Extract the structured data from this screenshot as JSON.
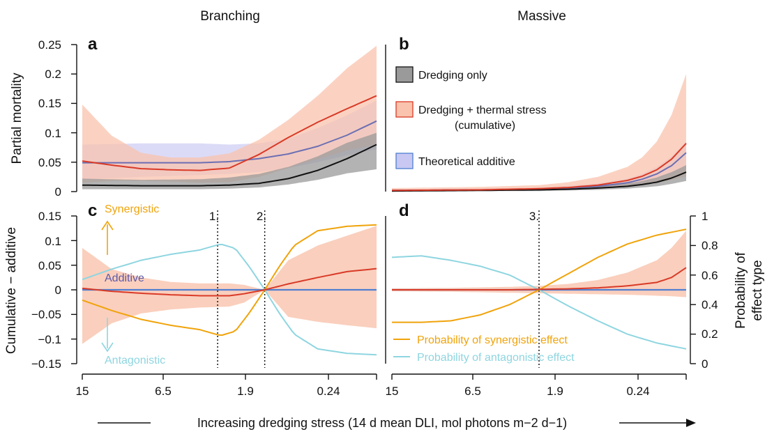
{
  "colors": {
    "black": "#111111",
    "red": "#d93a27",
    "red_band": "#f9c3ad",
    "purple_line": "#6b6fb3",
    "purple_band": "#c8c8f2",
    "grey_band": "#9a9a9a",
    "orange": "#f0a30a",
    "cyan": "#8ed5e0",
    "blue_line": "#4f7fd0",
    "purple_text": "#5c5aa8"
  },
  "columns": {
    "left": "Branching",
    "right": "Massive"
  },
  "panels": {
    "a": "a",
    "b": "b",
    "c": "c",
    "d": "d"
  },
  "xaxis": {
    "ticks": [
      "15",
      "6.5",
      "1.9",
      "0.24"
    ],
    "label": "Increasing dredging stress (14 d mean DLI, mol photons m−2 d−1)"
  },
  "top_axis": {
    "ylabel": "Partial mortality",
    "ticks": [
      "0.25",
      "0.2",
      "0.15",
      "0.1",
      "0.05",
      "0"
    ],
    "ylim": [
      0,
      0.25
    ]
  },
  "bottom_axis": {
    "ylabel": "Cumulative − additive",
    "ticks": [
      "0.15",
      "0.1",
      "0.05",
      "0",
      "−0.05",
      "−0.1",
      "−0.15"
    ],
    "ylim": [
      -0.15,
      0.15
    ],
    "right_ylabel_line1": "Probability of",
    "right_ylabel_line2": "effect type",
    "right_ticks": [
      "1",
      "0.8",
      "0.6",
      "0.4",
      "0.2",
      "0"
    ],
    "right_ylim": [
      0,
      1
    ]
  },
  "legend": {
    "dredging_only": "Dredging only",
    "cumulative_line1": "Dredging + thermal stress",
    "cumulative_line2": "(cumulative)",
    "additive": "Theoretical additive",
    "prob_syn": "Probability of synergistic effect",
    "prob_ant": "Probability of antagonistic effect"
  },
  "annotations": {
    "synergistic": "Synergistic",
    "additive": "Additive",
    "antagonistic": "Antagonistic",
    "v1": "1.",
    "v2": "2.",
    "v3": "3."
  },
  "chart_data": [
    {
      "panel": "a",
      "type": "line",
      "title": "Branching",
      "ylabel": "Partial mortality",
      "x_note": "x = position along dredging stress axis, 0 = 15 DLI (left), 1 = right end",
      "xlim": [
        0,
        1
      ],
      "ylim": [
        0,
        0.25
      ],
      "series": [
        {
          "name": "Dredging only",
          "x": [
            0,
            0.2,
            0.4,
            0.5,
            0.6,
            0.7,
            0.8,
            0.9,
            1
          ],
          "values": [
            0.011,
            0.01,
            0.01,
            0.011,
            0.014,
            0.022,
            0.036,
            0.056,
            0.08
          ],
          "lower": [
            0.004,
            0.004,
            0.004,
            0.005,
            0.007,
            0.012,
            0.02,
            0.031,
            0.038
          ],
          "upper": [
            0.022,
            0.02,
            0.021,
            0.024,
            0.03,
            0.042,
            0.06,
            0.083,
            0.1
          ]
        },
        {
          "name": "Dredging + thermal stress (cumulative)",
          "x": [
            0,
            0.1,
            0.2,
            0.3,
            0.4,
            0.5,
            0.6,
            0.7,
            0.8,
            0.9,
            1
          ],
          "values": [
            0.052,
            0.045,
            0.039,
            0.037,
            0.036,
            0.04,
            0.063,
            0.092,
            0.118,
            0.141,
            0.163
          ],
          "lower": [
            0.015,
            0.018,
            0.018,
            0.017,
            0.015,
            0.016,
            0.025,
            0.04,
            0.055,
            0.07,
            0.08
          ],
          "upper": [
            0.148,
            0.095,
            0.066,
            0.058,
            0.058,
            0.065,
            0.088,
            0.122,
            0.163,
            0.21,
            0.248
          ]
        },
        {
          "name": "Theoretical additive",
          "x": [
            0,
            0.2,
            0.4,
            0.5,
            0.6,
            0.7,
            0.8,
            0.9,
            1
          ],
          "values": [
            0.049,
            0.049,
            0.049,
            0.051,
            0.056,
            0.064,
            0.077,
            0.096,
            0.12
          ],
          "lower": [
            0.02,
            0.025,
            0.028,
            0.03,
            0.033,
            0.04,
            0.05,
            0.062,
            0.072
          ],
          "upper": [
            0.08,
            0.082,
            0.082,
            0.08,
            0.082,
            0.09,
            0.108,
            0.13,
            0.155
          ]
        }
      ]
    },
    {
      "panel": "b",
      "type": "line",
      "title": "Massive",
      "x_note": "x = position along dredging stress axis, 0 = 15 DLI (left), 1 = right end",
      "xlim": [
        0,
        1
      ],
      "ylim": [
        0,
        0.25
      ],
      "series": [
        {
          "name": "Dredging only",
          "x": [
            0,
            0.3,
            0.5,
            0.6,
            0.7,
            0.8,
            0.85,
            0.9,
            0.95,
            1
          ],
          "values": [
            0.001,
            0.002,
            0.003,
            0.004,
            0.006,
            0.009,
            0.012,
            0.016,
            0.023,
            0.033
          ],
          "lower": [
            0.0,
            0.001,
            0.001,
            0.002,
            0.003,
            0.005,
            0.007,
            0.009,
            0.013,
            0.018
          ],
          "upper": [
            0.002,
            0.003,
            0.005,
            0.007,
            0.01,
            0.014,
            0.018,
            0.024,
            0.033,
            0.045
          ]
        },
        {
          "name": "Dredging + thermal stress (cumulative)",
          "x": [
            0,
            0.3,
            0.5,
            0.6,
            0.7,
            0.8,
            0.85,
            0.9,
            0.95,
            1
          ],
          "values": [
            0.002,
            0.003,
            0.005,
            0.007,
            0.011,
            0.019,
            0.026,
            0.037,
            0.055,
            0.082
          ],
          "lower": [
            0.0,
            0.001,
            0.002,
            0.003,
            0.005,
            0.008,
            0.011,
            0.015,
            0.02,
            0.026
          ],
          "upper": [
            0.006,
            0.008,
            0.011,
            0.016,
            0.025,
            0.042,
            0.058,
            0.085,
            0.13,
            0.2
          ]
        },
        {
          "name": "Theoretical additive",
          "x": [
            0,
            0.3,
            0.5,
            0.6,
            0.7,
            0.8,
            0.85,
            0.9,
            0.95,
            1
          ],
          "values": [
            0.002,
            0.003,
            0.004,
            0.006,
            0.009,
            0.015,
            0.021,
            0.03,
            0.044,
            0.066
          ],
          "lower": [
            0.001,
            0.002,
            0.003,
            0.004,
            0.006,
            0.01,
            0.014,
            0.019,
            0.027,
            0.038
          ],
          "upper": [
            0.004,
            0.005,
            0.007,
            0.01,
            0.014,
            0.022,
            0.03,
            0.042,
            0.06,
            0.085
          ]
        }
      ]
    },
    {
      "panel": "c",
      "type": "line",
      "ylabel": "Cumulative − additive",
      "x_note": "x = position along dredging stress axis, 0 = 15 DLI (left), 1 = right end",
      "xlim": [
        0,
        1
      ],
      "ylim": [
        -0.15,
        0.15
      ],
      "y2lim": [
        0,
        1
      ],
      "vlines": [
        {
          "label": "1.",
          "x": 0.46
        },
        {
          "label": "2.",
          "x": 0.62
        }
      ],
      "series": [
        {
          "name": "Cumulative − additive",
          "axis": "left",
          "x": [
            0,
            0.1,
            0.2,
            0.3,
            0.4,
            0.5,
            0.55,
            0.62,
            0.7,
            0.8,
            0.9,
            1
          ],
          "values": [
            0.003,
            -0.003,
            -0.007,
            -0.01,
            -0.012,
            -0.012,
            -0.008,
            0.0,
            0.012,
            0.025,
            0.037,
            0.043
          ],
          "lower": [
            -0.11,
            -0.068,
            -0.048,
            -0.04,
            -0.036,
            -0.034,
            -0.026,
            0.0,
            -0.055,
            -0.065,
            -0.072,
            -0.078
          ],
          "upper": [
            0.085,
            0.042,
            0.025,
            0.016,
            0.013,
            0.013,
            0.01,
            0.0,
            0.06,
            0.09,
            0.11,
            0.13
          ]
        },
        {
          "name": "Probability of synergistic effect",
          "axis": "right",
          "x": [
            0,
            0.1,
            0.2,
            0.3,
            0.4,
            0.47,
            0.52,
            0.57,
            0.62,
            0.67,
            0.72,
            0.8,
            0.9,
            1
          ],
          "values": [
            0.43,
            0.36,
            0.3,
            0.26,
            0.23,
            0.19,
            0.22,
            0.35,
            0.5,
            0.66,
            0.8,
            0.9,
            0.93,
            0.94
          ]
        },
        {
          "name": "Probability of antagonistic effect",
          "axis": "right",
          "x": [
            0,
            0.1,
            0.2,
            0.3,
            0.4,
            0.47,
            0.52,
            0.57,
            0.62,
            0.67,
            0.72,
            0.8,
            0.9,
            1
          ],
          "values": [
            0.57,
            0.64,
            0.7,
            0.74,
            0.77,
            0.81,
            0.78,
            0.65,
            0.5,
            0.34,
            0.2,
            0.1,
            0.07,
            0.06
          ]
        },
        {
          "name": "Additive",
          "axis": "left",
          "x": [
            0,
            1
          ],
          "values": [
            0,
            0
          ]
        }
      ]
    },
    {
      "panel": "d",
      "type": "line",
      "x_note": "x = position along dredging stress axis, 0 = 15 DLI (left), 1 = right end",
      "xlim": [
        0,
        1
      ],
      "ylim": [
        -0.15,
        0.15
      ],
      "y2lim": [
        0,
        1
      ],
      "vlines": [
        {
          "label": "3.",
          "x": 0.5
        }
      ],
      "series": [
        {
          "name": "Cumulative − additive",
          "axis": "left",
          "x": [
            0,
            0.2,
            0.4,
            0.5,
            0.6,
            0.7,
            0.8,
            0.9,
            0.95,
            1
          ],
          "values": [
            0.0,
            0.0,
            0.0,
            0.001,
            0.002,
            0.004,
            0.008,
            0.015,
            0.025,
            0.045
          ],
          "lower": [
            -0.003,
            -0.004,
            -0.006,
            -0.007,
            -0.008,
            -0.009,
            -0.01,
            -0.012,
            -0.013,
            -0.015
          ],
          "upper": [
            0.003,
            0.004,
            0.006,
            0.008,
            0.012,
            0.02,
            0.035,
            0.06,
            0.085,
            0.12
          ]
        },
        {
          "name": "Probability of synergistic effect",
          "axis": "right",
          "x": [
            0,
            0.1,
            0.2,
            0.3,
            0.4,
            0.5,
            0.6,
            0.7,
            0.8,
            0.9,
            1
          ],
          "values": [
            0.28,
            0.28,
            0.29,
            0.33,
            0.4,
            0.5,
            0.61,
            0.72,
            0.81,
            0.87,
            0.91
          ]
        },
        {
          "name": "Probability of antagonistic effect",
          "axis": "right",
          "x": [
            0,
            0.1,
            0.2,
            0.3,
            0.4,
            0.5,
            0.6,
            0.7,
            0.8,
            0.9,
            1
          ],
          "values": [
            0.72,
            0.73,
            0.7,
            0.66,
            0.6,
            0.5,
            0.39,
            0.29,
            0.2,
            0.14,
            0.1
          ]
        },
        {
          "name": "Additive",
          "axis": "left",
          "x": [
            0,
            1
          ],
          "values": [
            0,
            0
          ]
        }
      ]
    }
  ]
}
